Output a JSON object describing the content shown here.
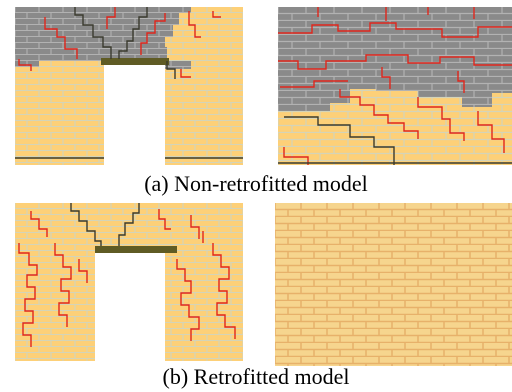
{
  "captions": {
    "a": "(a) Non-retrofitted model",
    "b": "(b) Retrofitted model"
  },
  "colors": {
    "brick": "#fdd078",
    "mortar": "#d4d4b8",
    "damaged": "#8a8a8a",
    "damaged_mortar": "#b2b2b2",
    "crack_red": "#e0261c",
    "crack_dark": "#3a3a2e",
    "lintel": "#5f5b24",
    "retrofit_mesh": "#e3a35a"
  }
}
